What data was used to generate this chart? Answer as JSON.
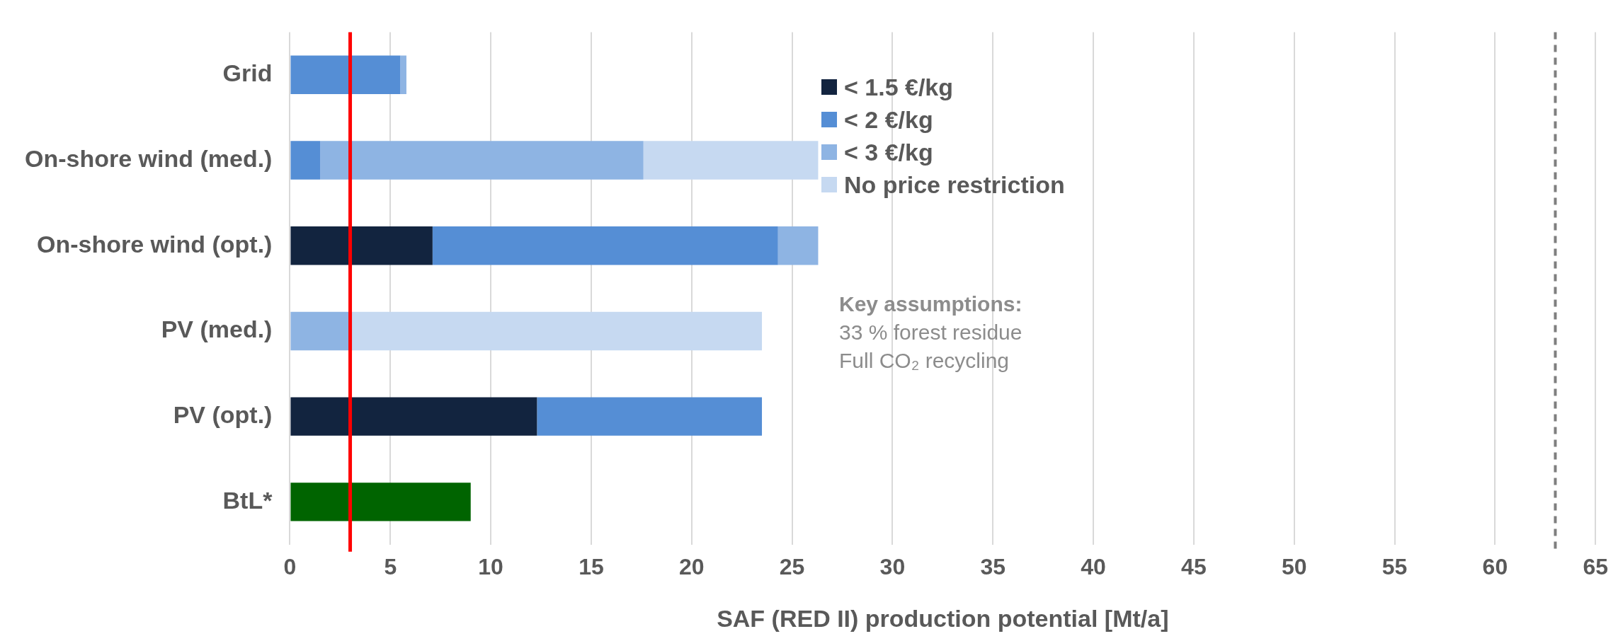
{
  "chart_data": {
    "type": "bar",
    "orientation": "horizontal",
    "stacked": true,
    "xlabel": "SAF (RED II) production potential [Mt/a]",
    "categories": [
      "Grid",
      "On-shore wind (med.)",
      "On-shore wind (opt.)",
      "PV (med.)",
      "PV (opt.)",
      "BtL*"
    ],
    "series": [
      {
        "name": "< 1.5 €/kg",
        "color": "#12243f",
        "values": [
          null,
          null,
          7.1,
          null,
          12.3,
          null
        ]
      },
      {
        "name": "< 2 €/kg",
        "color": "#558ed5",
        "values": [
          5.5,
          1.5,
          17.2,
          null,
          11.2,
          null
        ]
      },
      {
        "name": "< 3 €/kg",
        "color": "#8eb4e3",
        "values": [
          0.3,
          16.1,
          2.0,
          3.0,
          null,
          null
        ]
      },
      {
        "name": "No price restriction",
        "color": "#c6d9f1",
        "values": [
          null,
          8.7,
          null,
          20.5,
          null,
          null
        ]
      },
      {
        "color": "#006400",
        "values": [
          null,
          null,
          null,
          null,
          null,
          9.0
        ]
      }
    ],
    "xlim": [
      0,
      65
    ],
    "xticks": [
      0,
      5,
      10,
      15,
      20,
      25,
      30,
      35,
      40,
      45,
      50,
      55,
      60,
      65
    ],
    "grid": "x",
    "legend": "top right",
    "ref_lines": [
      {
        "axis": "x",
        "value": 3,
        "color": "#ff0000",
        "line_style": "solid"
      },
      {
        "axis": "x",
        "value": 63,
        "color": "#7f7f7f",
        "line_style": "dashed"
      }
    ],
    "annotations": [
      "Key assumptions:",
      "33 % forest residue",
      "Full CO₂ recycling"
    ]
  }
}
